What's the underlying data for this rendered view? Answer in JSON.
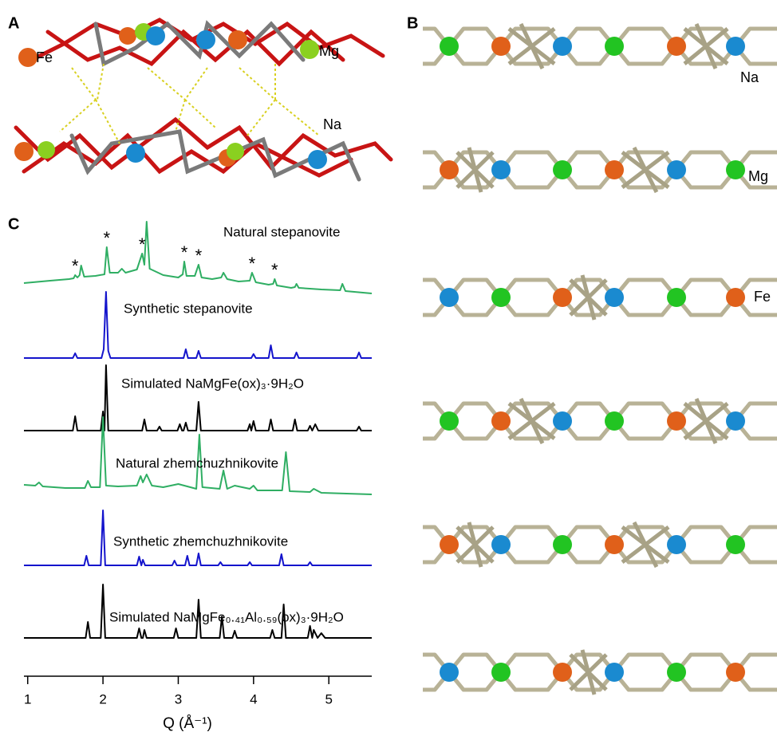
{
  "panel_labels": [
    "A",
    "B",
    "C"
  ],
  "panel_a": {
    "labels": [
      "Fe",
      "Mg",
      "Na"
    ]
  },
  "panel_b": {
    "labels": [
      "Na",
      "Mg",
      "Fe"
    ]
  },
  "chart_data": {
    "type": "line",
    "xlabel": "Q (Å⁻¹)",
    "xlim": [
      0.95,
      5.57
    ],
    "xticks": [
      1,
      2,
      3,
      4,
      5
    ],
    "annotations": [
      {
        "text": "*",
        "x": 1.63
      },
      {
        "text": "*",
        "x": 2.05
      },
      {
        "text": "*",
        "x": 2.52
      },
      {
        "text": "*",
        "x": 3.08
      },
      {
        "text": "*",
        "x": 3.27
      },
      {
        "text": "*",
        "x": 3.98
      },
      {
        "text": "*",
        "x": 4.28
      }
    ],
    "series": [
      {
        "name": "Natural stepanovite",
        "color": "#2fae63",
        "x": [
          0.95,
          1.3,
          1.55,
          1.61,
          1.63,
          1.66,
          1.69,
          1.71,
          1.75,
          1.9,
          2.02,
          2.05,
          2.09,
          2.2,
          2.25,
          2.3,
          2.45,
          2.52,
          2.55,
          2.58,
          2.62,
          2.8,
          3.0,
          3.06,
          3.08,
          3.11,
          3.22,
          3.27,
          3.31,
          3.45,
          3.57,
          3.6,
          3.65,
          3.8,
          3.95,
          3.98,
          4.03,
          4.2,
          4.26,
          4.28,
          4.31,
          4.5,
          4.55,
          4.57,
          4.6,
          4.9,
          5.15,
          5.18,
          5.22,
          5.57
        ],
        "values": [
          17,
          20,
          22,
          23,
          27,
          24,
          27,
          39,
          25,
          26,
          28,
          62,
          30,
          30,
          35,
          30,
          34,
          54,
          40,
          94,
          35,
          27,
          24,
          28,
          44,
          26,
          26,
          40,
          24,
          22,
          24,
          30,
          22,
          19,
          20,
          30,
          18,
          15,
          16,
          22,
          14,
          11,
          12,
          16,
          11,
          9,
          8,
          16,
          7,
          4
        ]
      },
      {
        "name": "Synthetic stepanovite",
        "color": "#1414cc",
        "x": [
          0.95,
          1.6,
          1.63,
          1.66,
          1.98,
          2.01,
          2.04,
          2.07,
          2.1,
          3.07,
          3.1,
          3.13,
          3.24,
          3.27,
          3.3,
          3.97,
          4.0,
          4.03,
          4.2,
          4.23,
          4.26,
          4.54,
          4.57,
          4.6,
          5.37,
          5.4,
          5.43,
          5.57
        ],
        "values": [
          1,
          1,
          7,
          1,
          1,
          12,
          84,
          10,
          1,
          1,
          12,
          1,
          1,
          10,
          1,
          1,
          6,
          1,
          1,
          17,
          1,
          1,
          8,
          1,
          1,
          8,
          1,
          1
        ]
      },
      {
        "name": "Simulated NaMgFe(ox)₃·9H₂O",
        "color": "#000000",
        "x": [
          0.95,
          1.6,
          1.63,
          1.66,
          1.97,
          2.0,
          2.02,
          2.04,
          2.07,
          2.52,
          2.55,
          2.58,
          2.72,
          2.75,
          2.78,
          2.99,
          3.02,
          3.05,
          3.07,
          3.1,
          3.13,
          3.24,
          3.27,
          3.3,
          3.92,
          3.95,
          3.97,
          4.0,
          4.03,
          4.2,
          4.23,
          4.26,
          4.52,
          4.55,
          4.58,
          4.72,
          4.75,
          4.78,
          4.82,
          4.86,
          5.37,
          5.4,
          5.43,
          5.57
        ],
        "values": [
          0,
          0,
          18,
          0,
          0,
          24,
          0,
          82,
          0,
          0,
          14,
          0,
          0,
          5,
          0,
          0,
          8,
          0,
          0,
          10,
          0,
          0,
          36,
          0,
          0,
          8,
          0,
          12,
          0,
          0,
          14,
          0,
          0,
          14,
          0,
          0,
          6,
          0,
          8,
          0,
          0,
          5,
          0,
          0
        ]
      },
      {
        "name": "Natural zhemchuzhnikovite",
        "color": "#2fae63",
        "x": [
          0.95,
          1.1,
          1.15,
          1.2,
          1.5,
          1.76,
          1.8,
          1.84,
          1.96,
          2.0,
          2.04,
          2.2,
          2.45,
          2.5,
          2.53,
          2.58,
          2.65,
          2.8,
          3.0,
          3.24,
          3.28,
          3.32,
          3.55,
          3.6,
          3.65,
          3.75,
          3.95,
          4.0,
          4.05,
          4.38,
          4.43,
          4.48,
          4.75,
          4.8,
          4.9,
          5.57
        ],
        "values": [
          17,
          16,
          20,
          15,
          13,
          13,
          22,
          14,
          14,
          102,
          16,
          15,
          16,
          28,
          20,
          30,
          16,
          14,
          18,
          12,
          80,
          14,
          12,
          35,
          12,
          16,
          12,
          16,
          10,
          10,
          58,
          9,
          8,
          12,
          7,
          5
        ]
      },
      {
        "name": "Synthetic zhemchuzhnikovite",
        "color": "#1414cc",
        "x": [
          0.95,
          1.75,
          1.78,
          1.81,
          1.97,
          2.0,
          2.03,
          2.45,
          2.48,
          2.51,
          2.53,
          2.56,
          2.92,
          2.95,
          2.98,
          3.09,
          3.12,
          3.15,
          3.24,
          3.27,
          3.3,
          3.53,
          3.56,
          3.59,
          3.92,
          3.95,
          3.98,
          4.34,
          4.37,
          4.4,
          4.72,
          4.75,
          4.78,
          5.57
        ],
        "values": [
          1,
          1,
          13,
          1,
          1,
          70,
          1,
          1,
          12,
          1,
          8,
          1,
          1,
          7,
          1,
          1,
          13,
          1,
          1,
          16,
          1,
          1,
          5,
          1,
          1,
          5,
          1,
          1,
          15,
          1,
          1,
          5,
          1,
          1
        ]
      },
      {
        "name": "Simulated NaMgFe₀.₄₁Al₀.₅₉(ox)₃·9H₂O",
        "color": "#000000",
        "x": [
          0.95,
          1.77,
          1.8,
          1.83,
          1.97,
          2.0,
          2.03,
          2.45,
          2.48,
          2.51,
          2.53,
          2.55,
          2.58,
          2.94,
          2.97,
          3.0,
          3.24,
          3.27,
          3.3,
          3.55,
          3.58,
          3.61,
          3.72,
          3.75,
          3.78,
          4.22,
          4.25,
          4.28,
          4.37,
          4.4,
          4.43,
          4.72,
          4.75,
          4.78,
          4.8,
          4.85,
          4.9,
          4.95,
          5.3,
          5.45,
          5.57
        ],
        "values": [
          0,
          0,
          20,
          0,
          0,
          67,
          0,
          0,
          12,
          0,
          0,
          10,
          0,
          0,
          12,
          0,
          0,
          48,
          0,
          0,
          27,
          0,
          0,
          9,
          0,
          0,
          10,
          0,
          0,
          42,
          0,
          0,
          15,
          0,
          10,
          0,
          6,
          0,
          0,
          0,
          0
        ]
      }
    ]
  }
}
